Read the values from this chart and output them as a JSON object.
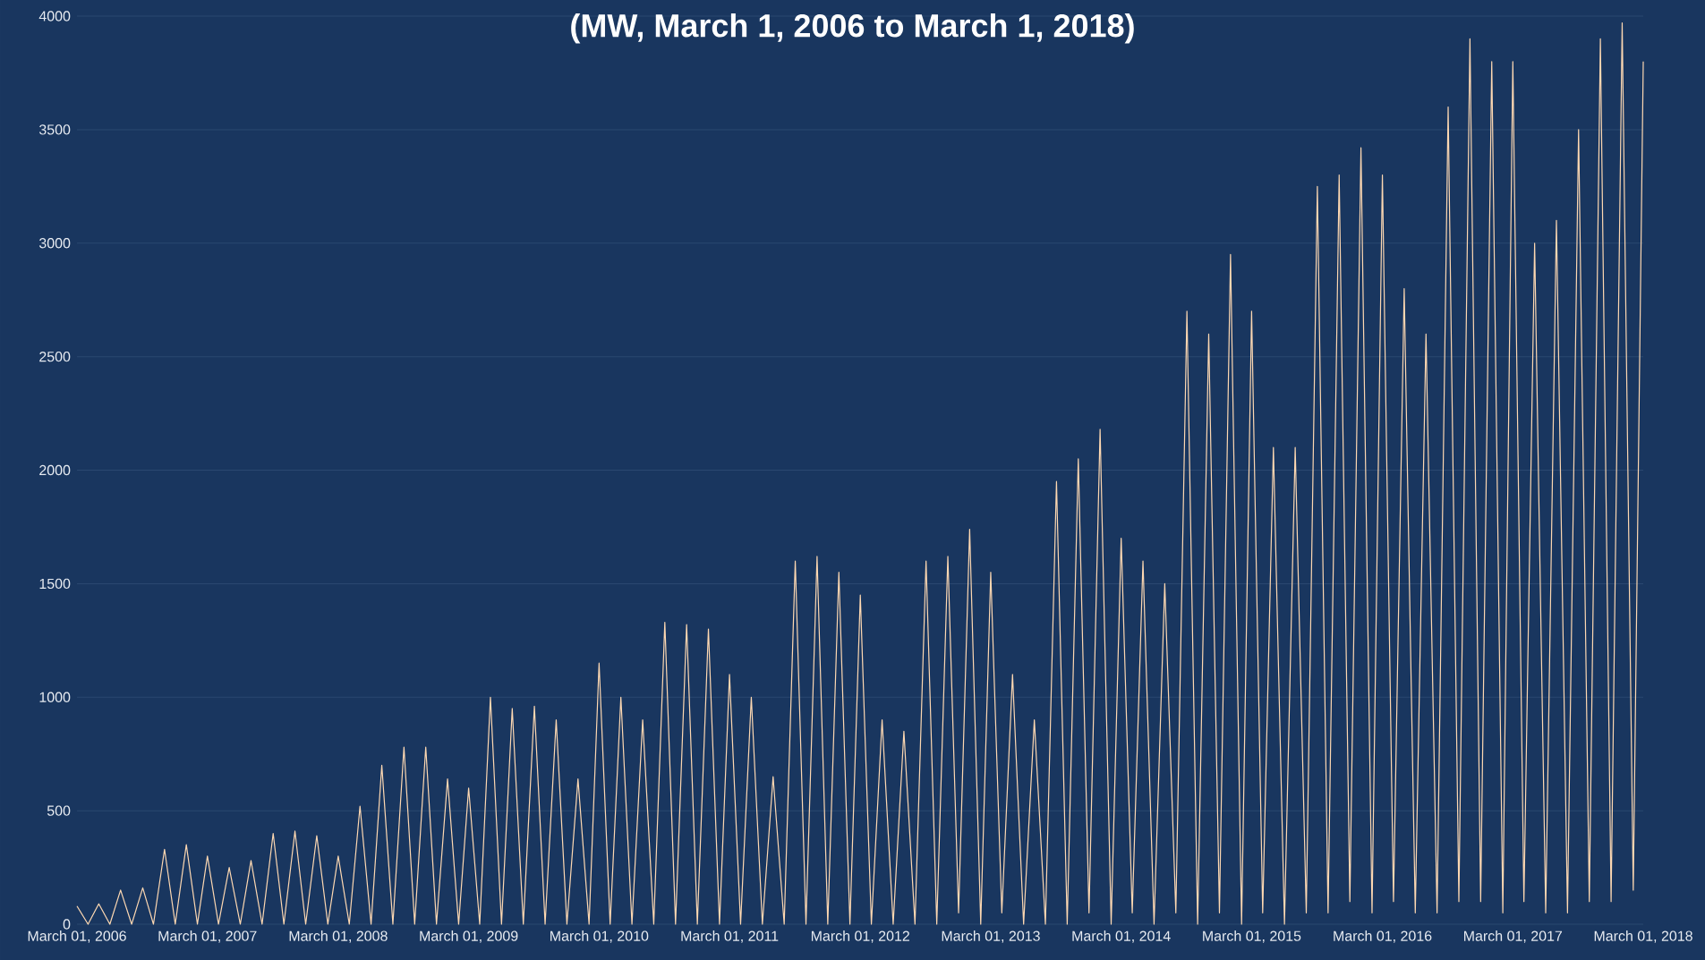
{
  "chart_data": {
    "type": "line",
    "title": "(MW, March 1, 2006 to March 1, 2018)",
    "x": [
      "2006-03-01",
      "2006-04-01",
      "2006-05-01",
      "2006-06-01",
      "2006-07-01",
      "2006-08-01",
      "2006-09-01",
      "2006-10-01",
      "2006-11-01",
      "2006-12-01",
      "2007-01-01",
      "2007-02-01",
      "2007-03-01",
      "2007-04-01",
      "2007-05-01",
      "2007-06-01",
      "2007-07-01",
      "2007-08-01",
      "2007-09-01",
      "2007-10-01",
      "2007-11-01",
      "2007-12-01",
      "2008-01-01",
      "2008-02-01",
      "2008-03-01",
      "2008-04-01",
      "2008-05-01",
      "2008-06-01",
      "2008-07-01",
      "2008-08-01",
      "2008-09-01",
      "2008-10-01",
      "2008-11-01",
      "2008-12-01",
      "2009-01-01",
      "2009-02-01",
      "2009-03-01",
      "2009-04-01",
      "2009-05-01",
      "2009-06-01",
      "2009-07-01",
      "2009-08-01",
      "2009-09-01",
      "2009-10-01",
      "2009-11-01",
      "2009-12-01",
      "2010-01-01",
      "2010-02-01",
      "2010-03-01",
      "2010-04-01",
      "2010-05-01",
      "2010-06-01",
      "2010-07-01",
      "2010-08-01",
      "2010-09-01",
      "2010-10-01",
      "2010-11-01",
      "2010-12-01",
      "2011-01-01",
      "2011-02-01",
      "2011-03-01",
      "2011-04-01",
      "2011-05-01",
      "2011-06-01",
      "2011-07-01",
      "2011-08-01",
      "2011-09-01",
      "2011-10-01",
      "2011-11-01",
      "2011-12-01",
      "2012-01-01",
      "2012-02-01",
      "2012-03-01",
      "2012-04-01",
      "2012-05-01",
      "2012-06-01",
      "2012-07-01",
      "2012-08-01",
      "2012-09-01",
      "2012-10-01",
      "2012-11-01",
      "2012-12-01",
      "2013-01-01",
      "2013-02-01",
      "2013-03-01",
      "2013-04-01",
      "2013-05-01",
      "2013-06-01",
      "2013-07-01",
      "2013-08-01",
      "2013-09-01",
      "2013-10-01",
      "2013-11-01",
      "2013-12-01",
      "2014-01-01",
      "2014-02-01",
      "2014-03-01",
      "2014-04-01",
      "2014-05-01",
      "2014-06-01",
      "2014-07-01",
      "2014-08-01",
      "2014-09-01",
      "2014-10-01",
      "2014-11-01",
      "2014-12-01",
      "2015-01-01",
      "2015-02-01",
      "2015-03-01",
      "2015-04-01",
      "2015-05-01",
      "2015-06-01",
      "2015-07-01",
      "2015-08-01",
      "2015-09-01",
      "2015-10-01",
      "2015-11-01",
      "2015-12-01",
      "2016-01-01",
      "2016-02-01",
      "2016-03-01",
      "2016-04-01",
      "2016-05-01",
      "2016-06-01",
      "2016-07-01",
      "2016-08-01",
      "2016-09-01",
      "2016-10-01",
      "2016-11-01",
      "2016-12-01",
      "2017-01-01",
      "2017-02-01",
      "2017-03-01",
      "2017-04-01",
      "2017-05-01",
      "2017-06-01",
      "2017-07-01",
      "2017-08-01",
      "2017-09-01",
      "2017-10-01",
      "2017-11-01",
      "2017-12-01",
      "2018-01-01",
      "2018-02-01",
      "2018-03-01"
    ],
    "series": [
      {
        "color": "#fdd8b2",
        "values": [
          80,
          0,
          90,
          0,
          150,
          0,
          160,
          0,
          330,
          0,
          350,
          0,
          300,
          0,
          250,
          0,
          280,
          0,
          400,
          0,
          410,
          0,
          390,
          0,
          300,
          0,
          520,
          0,
          700,
          0,
          780,
          0,
          780,
          0,
          640,
          0,
          600,
          0,
          1000,
          0,
          950,
          0,
          960,
          0,
          900,
          0,
          640,
          0,
          1150,
          0,
          1000,
          0,
          900,
          0,
          1330,
          0,
          1320,
          0,
          1300,
          0,
          1100,
          0,
          1000,
          0,
          650,
          0,
          1600,
          0,
          1620,
          0,
          1550,
          0,
          1450,
          0,
          900,
          0,
          850,
          0,
          1600,
          0,
          1620,
          50,
          1740,
          0,
          1550,
          50,
          1100,
          0,
          900,
          0,
          1950,
          0,
          2050,
          50,
          2180,
          0,
          1700,
          50,
          1600,
          0,
          1500,
          50,
          2700,
          0,
          2600,
          50,
          2950,
          0,
          2700,
          50,
          2100,
          0,
          2100,
          50,
          3250,
          50,
          3300,
          100,
          3420,
          50,
          3300,
          100,
          2800,
          50,
          2600,
          50,
          3600,
          100,
          3900,
          100,
          3800,
          50,
          3800,
          100,
          3000,
          50,
          3100,
          50,
          3500,
          100,
          3900,
          100,
          3970,
          150,
          3800
        ]
      }
    ],
    "xlim": [
      "2006-03-01",
      "2018-03-01"
    ],
    "xticks": [
      {
        "value": "2006-03-01",
        "label": "March 01, 2006"
      },
      {
        "value": "2007-03-01",
        "label": "March 01, 2007"
      },
      {
        "value": "2008-03-01",
        "label": "March 01, 2008"
      },
      {
        "value": "2009-03-01",
        "label": "March 01, 2009"
      },
      {
        "value": "2010-03-01",
        "label": "March 01, 2010"
      },
      {
        "value": "2011-03-01",
        "label": "March 01, 2011"
      },
      {
        "value": "2012-03-01",
        "label": "March 01, 2012"
      },
      {
        "value": "2013-03-01",
        "label": "March 01, 2013"
      },
      {
        "value": "2014-03-01",
        "label": "March 01, 2014"
      },
      {
        "value": "2015-03-01",
        "label": "March 01, 2015"
      },
      {
        "value": "2016-03-01",
        "label": "March 01, 2016"
      },
      {
        "value": "2017-03-01",
        "label": "March 01, 2017"
      },
      {
        "value": "2018-03-01",
        "label": "March 01, 2018"
      }
    ],
    "ylim": [
      0,
      4000
    ],
    "yticks": [
      0,
      500,
      1000,
      1500,
      2000,
      2500,
      3000,
      3500,
      4000
    ],
    "grid": "y"
  }
}
